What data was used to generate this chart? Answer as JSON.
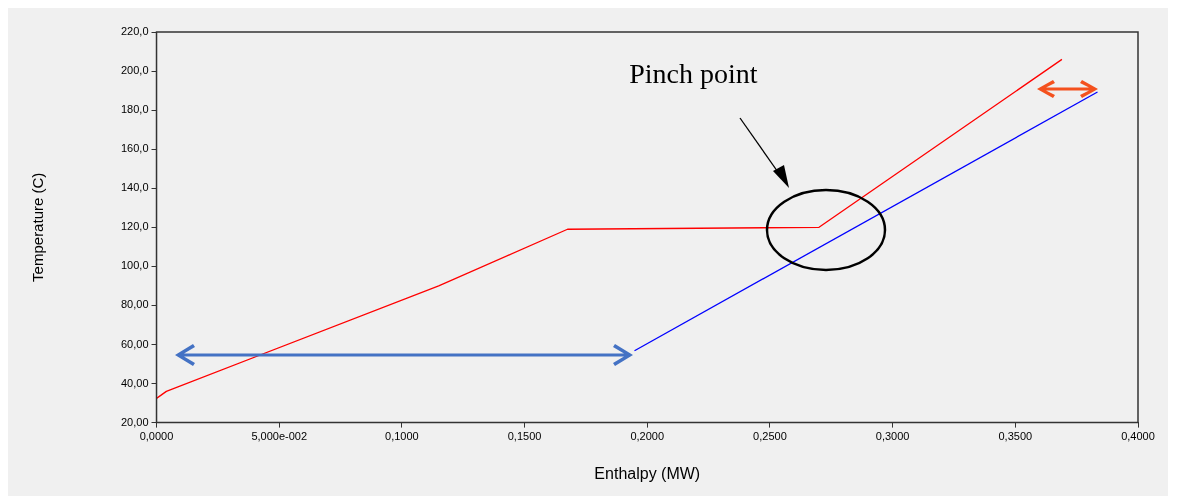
{
  "chart_data": {
    "type": "line",
    "xlabel": "Enthalpy (MW)",
    "ylabel": "Temperature (C)",
    "series": [
      {
        "color": "#ff0000",
        "x": [
          0,
          0.004,
          0.115,
          0.1675,
          0.27,
          0.369
        ],
        "values": [
          32.4,
          36,
          90,
          119,
          120,
          206
        ]
      },
      {
        "color": "#0000ff",
        "x": [
          0.1948,
          0.3835
        ],
        "values": [
          56.8,
          189.3
        ]
      }
    ],
    "xlim": [
      0,
      0.4
    ],
    "ylim": [
      20,
      220
    ],
    "xticks": [
      {
        "value": 0,
        "label": "0,0000"
      },
      {
        "value": 0.05,
        "label": "5,000e-002"
      },
      {
        "value": 0.1,
        "label": "0,1000"
      },
      {
        "value": 0.15,
        "label": "0,1500"
      },
      {
        "value": 0.2,
        "label": "0,2000"
      },
      {
        "value": 0.25,
        "label": "0,2500"
      },
      {
        "value": 0.3,
        "label": "0,3000"
      },
      {
        "value": 0.35,
        "label": "0,3500"
      },
      {
        "value": 0.4,
        "label": "0,4000"
      }
    ],
    "yticks": [
      {
        "value": 20,
        "label": "20,00"
      },
      {
        "value": 40,
        "label": "40,00"
      },
      {
        "value": 60,
        "label": "60,00"
      },
      {
        "value": 80,
        "label": "80,00"
      },
      {
        "value": 100,
        "label": "100,0"
      },
      {
        "value": 120,
        "label": "120,0"
      },
      {
        "value": 140,
        "label": "140,0"
      },
      {
        "value": 160,
        "label": "160,0"
      },
      {
        "value": 180,
        "label": "180,0"
      },
      {
        "value": 200,
        "label": "200,0"
      },
      {
        "value": 220,
        "label": "220,0"
      }
    ],
    "annotations": [
      "Pinch point"
    ],
    "grid": false,
    "legend": false,
    "marker": "none",
    "line_style": "solid"
  }
}
